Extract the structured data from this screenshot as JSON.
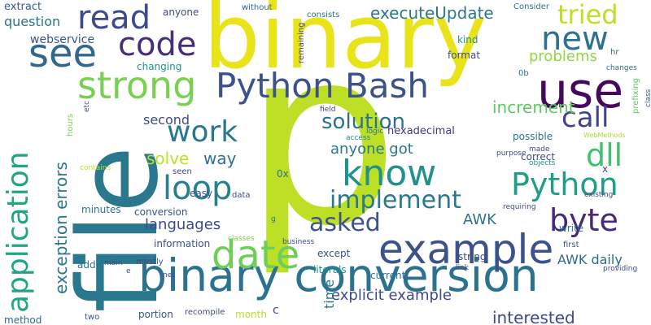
{
  "words": [
    {
      "text": "p",
      "color": "#bddf26"
    },
    {
      "text": "binary",
      "color": "#e8e419"
    },
    {
      "text": "file",
      "color": "#2a788e"
    },
    {
      "text": "binary conversion",
      "color": "#2c728e"
    },
    {
      "text": "use",
      "color": "#46085c"
    },
    {
      "text": "Python Bash",
      "color": "#3b528b"
    },
    {
      "text": "strong",
      "color": "#7ad151"
    },
    {
      "text": "example",
      "color": "#3b528b"
    },
    {
      "text": "application",
      "color": "#21a685"
    },
    {
      "text": "date",
      "color": "#6ece58"
    },
    {
      "text": "code",
      "color": "#472d7b"
    },
    {
      "text": "see",
      "color": "#31688e"
    },
    {
      "text": "read",
      "color": "#3e4a89"
    },
    {
      "text": "new",
      "color": "#2c728e"
    },
    {
      "text": "tried",
      "color": "#bddf26"
    },
    {
      "text": "know",
      "color": "#21918c"
    },
    {
      "text": "work",
      "color": "#2a788e"
    },
    {
      "text": "Python",
      "color": "#1f9e89"
    },
    {
      "text": "call",
      "color": "#414487"
    },
    {
      "text": "dll",
      "color": "#44bf70"
    },
    {
      "text": "loop",
      "color": "#27808e"
    },
    {
      "text": "byte",
      "color": "#482878"
    },
    {
      "text": "implement",
      "color": "#2a788e"
    },
    {
      "text": "asked",
      "color": "#3b528b"
    },
    {
      "text": "solution",
      "color": "#2c728e"
    },
    {
      "text": "exception errors",
      "color": "#2a788e"
    },
    {
      "text": "executeUpdate",
      "color": "#2a788e"
    },
    {
      "text": "problems",
      "color": "#90d743"
    },
    {
      "text": "increment",
      "color": "#5ec962"
    },
    {
      "text": "webservice",
      "color": "#3b528b"
    },
    {
      "text": "question",
      "color": "#2c728e"
    },
    {
      "text": "extract",
      "color": "#365c8d"
    },
    {
      "text": "anyone got",
      "color": "#2a788e"
    },
    {
      "text": "languages",
      "color": "#3e4a89"
    },
    {
      "text": "solve",
      "color": "#bddf26"
    },
    {
      "text": "way",
      "color": "#2c728e"
    },
    {
      "text": "second",
      "color": "#3e4a89"
    },
    {
      "text": "AWK",
      "color": "#2c728e"
    },
    {
      "text": "AWK daily",
      "color": "#31688e"
    },
    {
      "text": "interested",
      "color": "#3e4a89"
    },
    {
      "text": "explicit example",
      "color": "#3e4a89"
    },
    {
      "text": "time",
      "color": "#2a788e"
    },
    {
      "text": "anyone",
      "color": "#3e4a89"
    },
    {
      "text": "without",
      "color": "#31688e"
    },
    {
      "text": "consists",
      "color": "#2c728e"
    },
    {
      "text": "remaining",
      "color": "#3e4a89"
    },
    {
      "text": "Consider",
      "color": "#2c728e"
    },
    {
      "text": "kind",
      "color": "#21918c"
    },
    {
      "text": "format",
      "color": "#3e4a89"
    },
    {
      "text": "hexadecimal",
      "color": "#443983"
    },
    {
      "text": "changing",
      "color": "#21918c"
    },
    {
      "text": "conversion",
      "color": "#3b528b"
    },
    {
      "text": "information",
      "color": "#3b528b"
    },
    {
      "text": "minutes",
      "color": "#2c728e"
    },
    {
      "text": "possible",
      "color": "#2c728e"
    },
    {
      "text": "correct",
      "color": "#3e4a89"
    },
    {
      "text": "string",
      "color": "#3e4a89"
    },
    {
      "text": "literals",
      "color": "#21918c"
    },
    {
      "text": "current",
      "color": "#2c728e"
    },
    {
      "text": "except",
      "color": "#3b528b"
    },
    {
      "text": "write",
      "color": "#2c728e"
    },
    {
      "text": "first",
      "color": "#3e4a89"
    },
    {
      "text": "month",
      "color": "#bddf26"
    },
    {
      "text": "c",
      "color": "#3e4a89"
    },
    {
      "text": "portion",
      "color": "#3b528b"
    },
    {
      "text": "method",
      "color": "#31688e"
    },
    {
      "text": "add",
      "color": "#2c728e"
    },
    {
      "text": "mostly",
      "color": "#3e4a89"
    },
    {
      "text": "two",
      "color": "#3b528b"
    },
    {
      "text": "recompile",
      "color": "#3e4a89"
    },
    {
      "text": "0x",
      "color": "#2c728e"
    },
    {
      "text": "easy",
      "color": "#3e4a89"
    },
    {
      "text": "seen",
      "color": "#3e4a89"
    },
    {
      "text": "data",
      "color": "#3e4a89"
    },
    {
      "text": "hours",
      "color": "#7ad151"
    },
    {
      "text": "etc",
      "color": "#3e4a89"
    },
    {
      "text": "main",
      "color": "#3e4a89"
    },
    {
      "text": "net",
      "color": "#3e4a89"
    },
    {
      "text": "e",
      "color": "#3e4a89"
    },
    {
      "text": "0b",
      "color": "#2c728e"
    },
    {
      "text": "hr",
      "color": "#31688e"
    },
    {
      "text": "changes",
      "color": "#31688e"
    },
    {
      "text": "class",
      "color": "#31688e"
    },
    {
      "text": "prefixing",
      "color": "#5ec962"
    },
    {
      "text": "logic",
      "color": "#2c728e"
    },
    {
      "text": "access",
      "color": "#21918c"
    },
    {
      "text": "field",
      "color": "#3e4a89"
    },
    {
      "text": "made",
      "color": "#3e4a89"
    },
    {
      "text": "objects",
      "color": "#21918c"
    },
    {
      "text": "WebMethods",
      "color": "#a5db36"
    },
    {
      "text": "purpose",
      "color": "#3e4a89"
    },
    {
      "text": "contains",
      "color": "#bddf26"
    },
    {
      "text": "existing",
      "color": "#3e4a89"
    },
    {
      "text": "requiring",
      "color": "#3e4a89"
    },
    {
      "text": "g",
      "color": "#2c728e"
    },
    {
      "text": "classes",
      "color": "#7ad151"
    },
    {
      "text": "business",
      "color": "#3e4a89"
    },
    {
      "text": "link",
      "color": "#3e4a89"
    },
    {
      "text": "providing",
      "color": "#3e4a89"
    },
    {
      "text": "x",
      "color": "#3e4a89"
    }
  ]
}
